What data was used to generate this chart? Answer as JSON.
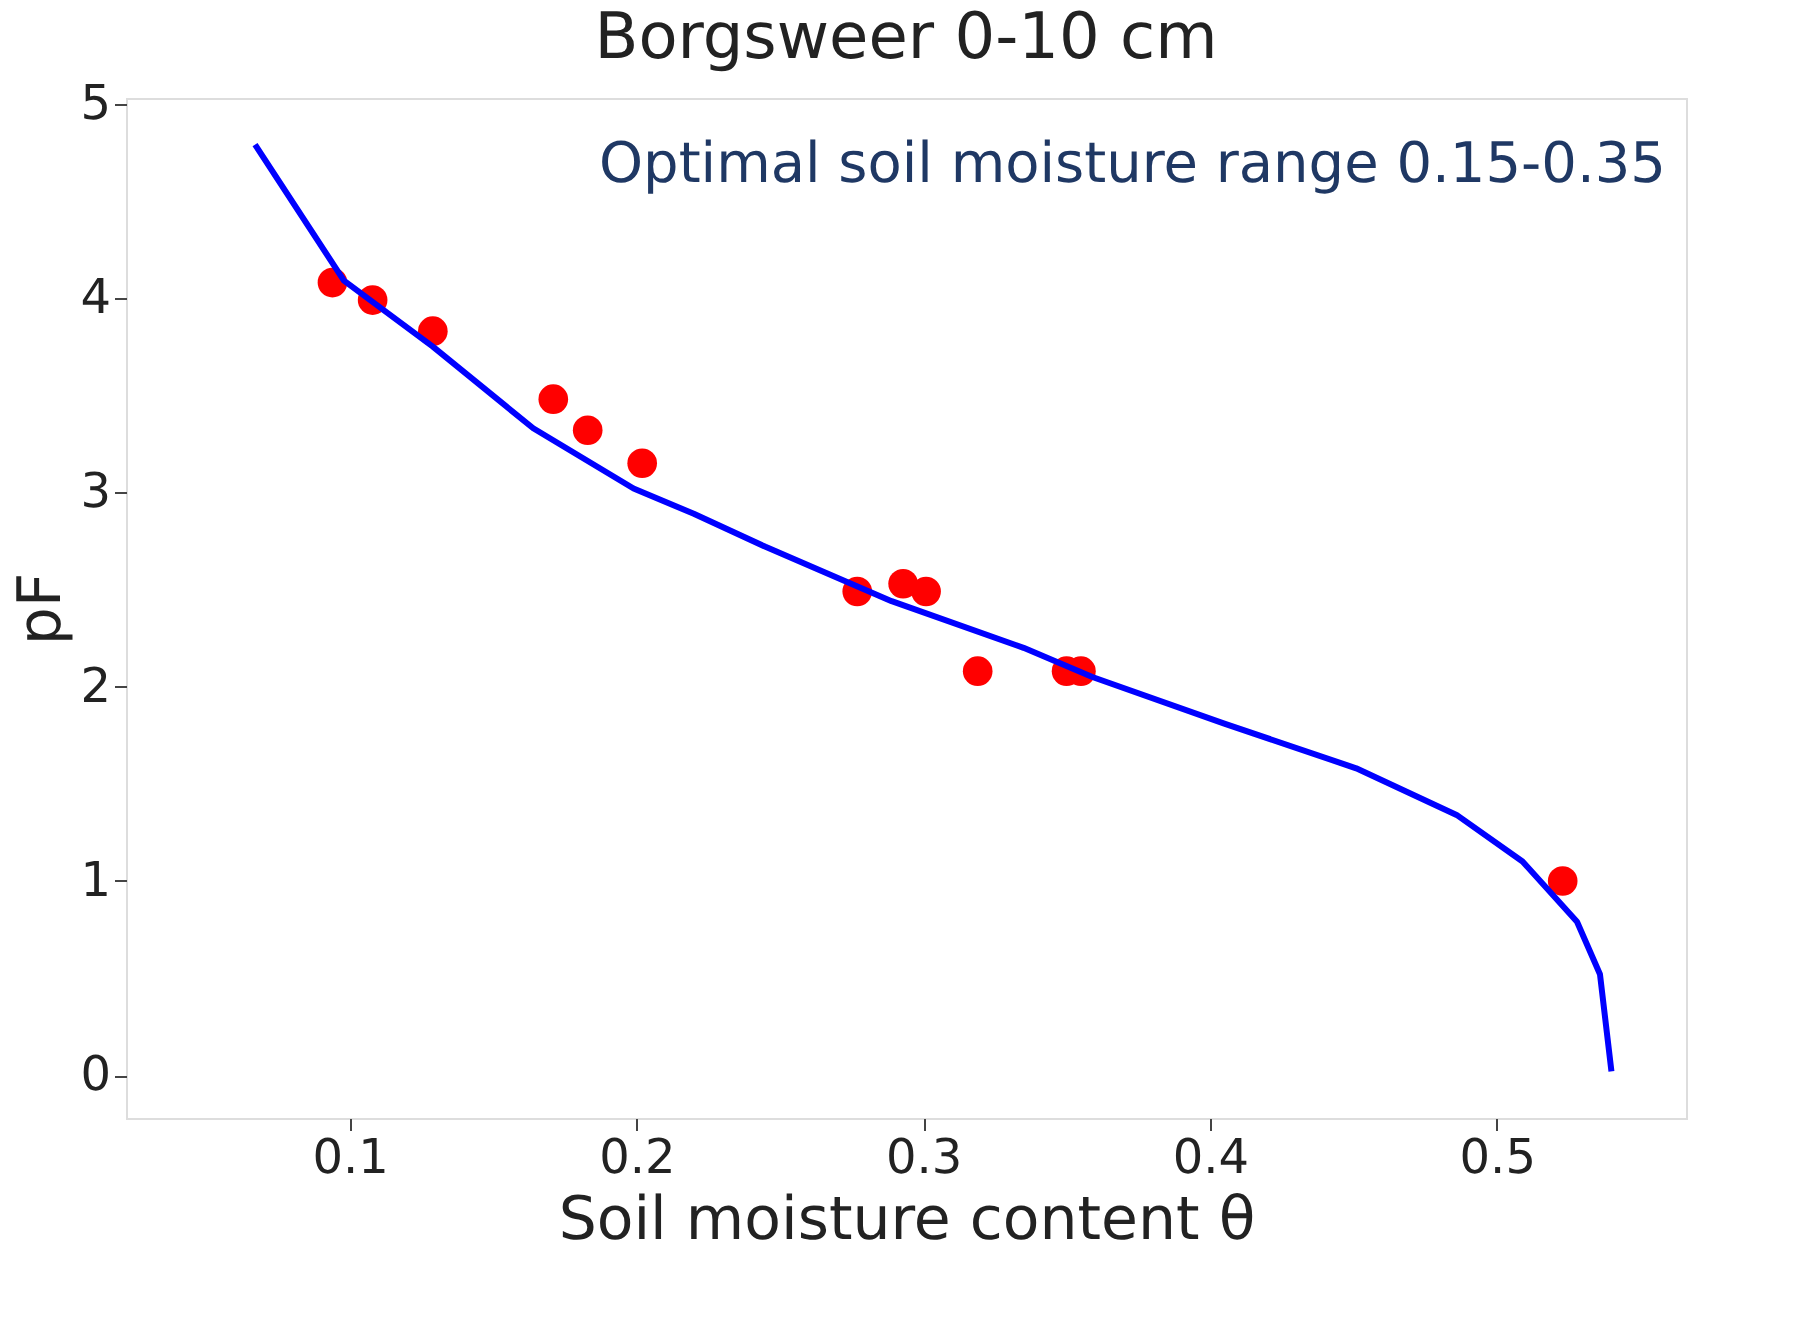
{
  "chart_data": {
    "type": "scatter",
    "title": "Borgsweer 0-10 cm",
    "xlabel": "Soil moisture content θ",
    "ylabel": "pF",
    "annotations": [
      "Optimal soil moisture range 0.15-0.35"
    ],
    "xlim": [
      0.022,
      0.566
    ],
    "ylim": [
      -0.22,
      5.03
    ],
    "xticks": [
      0.1,
      0.2,
      0.3,
      0.4,
      0.5
    ],
    "yticks": [
      0,
      1,
      2,
      3,
      4,
      5
    ],
    "grid": false,
    "series": [
      {
        "color": "#ff0000",
        "marker": "circle",
        "x": [
          0.094,
          0.108,
          0.129,
          0.171,
          0.183,
          0.202,
          0.277,
          0.293,
          0.301,
          0.319,
          0.35,
          0.355,
          0.523
        ],
        "values": [
          4.08,
          3.99,
          3.83,
          3.48,
          3.32,
          3.15,
          2.49,
          2.53,
          2.49,
          2.08,
          2.08,
          2.08,
          1.0
        ]
      },
      {
        "type": "line",
        "color": "#0000ff",
        "line_style": "solid",
        "x": [
          0.067,
          0.098,
          0.129,
          0.164,
          0.199,
          0.22,
          0.245,
          0.289,
          0.335,
          0.359,
          0.405,
          0.451,
          0.486,
          0.509,
          0.528,
          0.536,
          0.54
        ],
        "values": [
          4.79,
          4.09,
          3.75,
          3.33,
          3.02,
          2.89,
          2.72,
          2.44,
          2.2,
          2.05,
          1.81,
          1.58,
          1.34,
          1.1,
          0.79,
          0.52,
          0.02
        ]
      }
    ]
  }
}
